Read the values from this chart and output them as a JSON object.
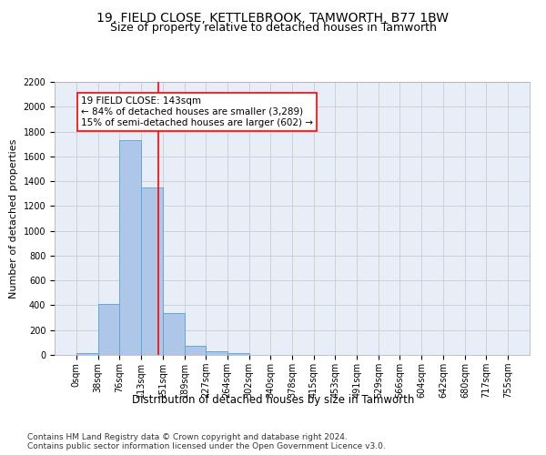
{
  "title1": "19, FIELD CLOSE, KETTLEBROOK, TAMWORTH, B77 1BW",
  "title2": "Size of property relative to detached houses in Tamworth",
  "xlabel": "Distribution of detached houses by size in Tamworth",
  "ylabel": "Number of detached properties",
  "bar_edges": [
    0,
    38,
    76,
    113,
    151,
    189,
    227,
    264,
    302,
    340,
    378,
    415,
    453,
    491,
    529,
    566,
    604,
    642,
    680,
    717,
    755
  ],
  "bar_heights": [
    15,
    410,
    1730,
    1350,
    335,
    75,
    30,
    15,
    0,
    0,
    0,
    0,
    0,
    0,
    0,
    0,
    0,
    0,
    0,
    0
  ],
  "bar_color": "#aec6e8",
  "bar_edgecolor": "#5a9fd4",
  "property_sqm": 143,
  "vline_color": "red",
  "annotation_text": "19 FIELD CLOSE: 143sqm\n← 84% of detached houses are smaller (3,289)\n15% of semi-detached houses are larger (602) →",
  "annotation_boxcolor": "white",
  "annotation_boxedgecolor": "red",
  "ylim": [
    0,
    2200
  ],
  "yticks": [
    0,
    200,
    400,
    600,
    800,
    1000,
    1200,
    1400,
    1600,
    1800,
    2000,
    2200
  ],
  "grid_color": "#cccccc",
  "bg_color": "#e8eef8",
  "footer1": "Contains HM Land Registry data © Crown copyright and database right 2024.",
  "footer2": "Contains public sector information licensed under the Open Government Licence v3.0.",
  "title1_fontsize": 10,
  "title2_fontsize": 9,
  "xlabel_fontsize": 8.5,
  "ylabel_fontsize": 8,
  "tick_fontsize": 7,
  "annotation_fontsize": 7.5,
  "footer_fontsize": 6.5
}
